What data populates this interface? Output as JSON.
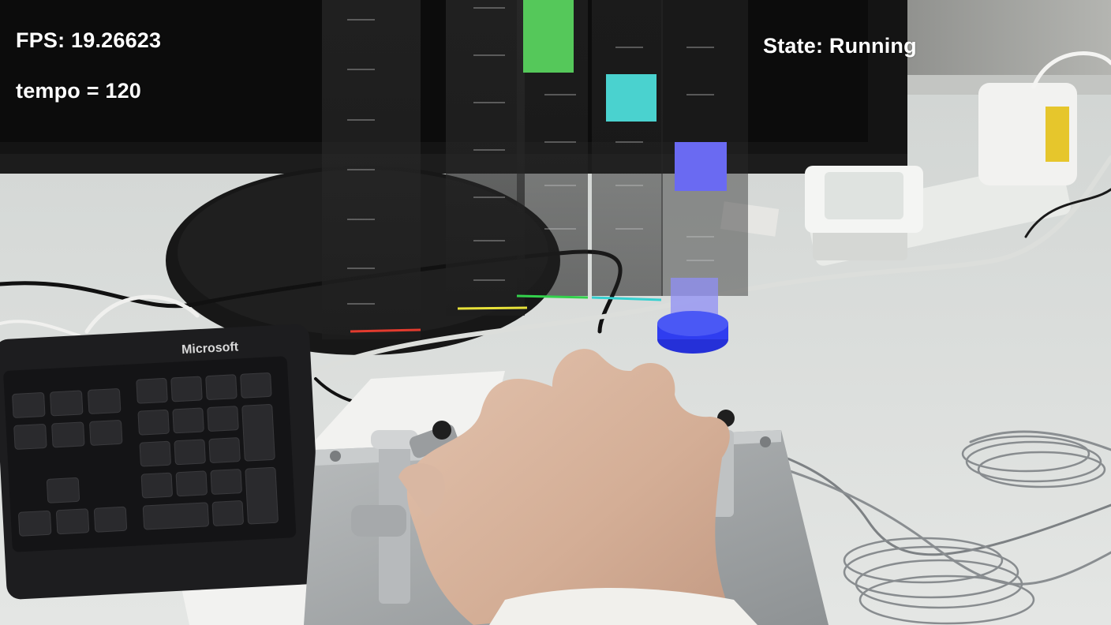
{
  "hud": {
    "fps_label": "FPS:",
    "fps_value": "19.26623",
    "tempo_text": "tempo = 120",
    "state_label": "State:",
    "state_value": "Running"
  },
  "scene": {
    "keyboard_brand": "Microsoft",
    "lane_line_colors": [
      "#e23b2e",
      "#e8e23a",
      "#33d14c",
      "#35d0d0",
      "#5a5cf0"
    ],
    "note_colors": {
      "green": "#55c85a",
      "cyan": "#4ad2cf",
      "blue": "#6a6af2"
    },
    "target_color": "#2f3df0"
  },
  "notes": [
    {
      "lane": "green",
      "color": "#55c85a"
    },
    {
      "lane": "cyan",
      "color": "#4ad2cf"
    },
    {
      "lane": "blue",
      "color": "#6a6af2"
    },
    {
      "lane": "blue-hit",
      "color": "#8f8ff5"
    }
  ]
}
